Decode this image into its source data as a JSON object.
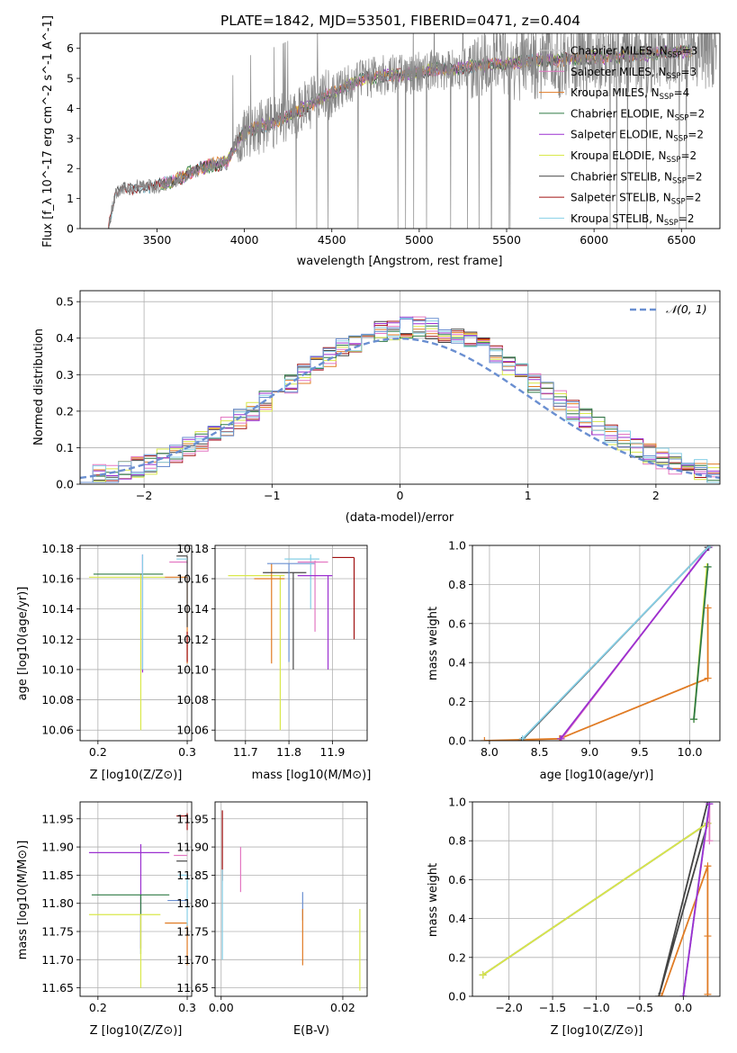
{
  "title": "PLATE=1842, MJD=53501, FIBERID=0471, z=0.404",
  "colors": {
    "Chabrier MILES": "#ffffff",
    "Salpeter MILES": "#e377c2",
    "Kroupa MILES": "#e07b24",
    "Chabrier ELODIE": "#2f7a44",
    "Salpeter ELODIE": "#9b30d0",
    "Kroupa ELODIE": "#d9e84a",
    "Chabrier STELIB": "#444444",
    "Salpeter STELIB": "#a01010",
    "Kroupa STELIB": "#86cfe6",
    "blue": "#6a8fd1",
    "data": "#888888"
  },
  "chart_data": [
    {
      "id": "spectrum",
      "type": "line",
      "xlabel": "wavelength [Angstrom, rest frame]",
      "ylabel": "Flux [f_λ 10^-17 erg cm^-2 s^-1 A^-1]",
      "xlim": [
        3060,
        6720
      ],
      "ylim": [
        0,
        6.5
      ],
      "xticks": [
        3500,
        4000,
        4500,
        5000,
        5500,
        6000,
        6500
      ],
      "yticks": [
        0,
        1,
        2,
        3,
        4,
        5,
        6
      ],
      "continuum": {
        "x": [
          3220,
          3260,
          3300,
          3400,
          3500,
          3600,
          3700,
          3800,
          3900,
          3950,
          4000,
          4100,
          4200,
          4300,
          4400,
          4500,
          4600,
          4700,
          4800,
          4900,
          5000,
          5100,
          5200,
          5300,
          5400,
          5500,
          5600,
          5700,
          5800,
          5900,
          6000,
          6100,
          6200,
          6300,
          6400,
          6550
        ],
        "y": [
          0,
          1.1,
          1.3,
          1.4,
          1.4,
          1.6,
          1.9,
          2.1,
          2.2,
          2.8,
          3.2,
          3.4,
          3.6,
          3.9,
          4.2,
          4.5,
          4.8,
          5.0,
          5.1,
          5.1,
          5.2,
          5.3,
          5.3,
          5.4,
          5.45,
          5.5,
          5.55,
          5.6,
          5.6,
          5.65,
          5.7,
          5.7,
          5.75,
          5.8,
          5.85,
          5.9
        ]
      },
      "legend": [
        {
          "label": "Chabrier MILES, N",
          "sub": "SSP",
          "tail": "=3"
        },
        {
          "label": "Salpeter MILES, N",
          "sub": "SSP",
          "tail": "=3"
        },
        {
          "label": "Kroupa MILES, N",
          "sub": "SSP",
          "tail": "=4"
        },
        {
          "label": "Chabrier ELODIE, N",
          "sub": "SSP",
          "tail": "=2"
        },
        {
          "label": "Salpeter ELODIE, N",
          "sub": "SSP",
          "tail": "=2"
        },
        {
          "label": "Kroupa ELODIE, N",
          "sub": "SSP",
          "tail": "=2"
        },
        {
          "label": "Chabrier STELIB, N",
          "sub": "SSP",
          "tail": "=2"
        },
        {
          "label": "Salpeter STELIB, N",
          "sub": "SSP",
          "tail": "=2"
        },
        {
          "label": "Kroupa STELIB, N",
          "sub": "SSP",
          "tail": "=2"
        }
      ]
    },
    {
      "id": "residuals",
      "type": "line",
      "xlabel": "(data-model)/error",
      "ylabel": "Normed distribution",
      "xlim": [
        -2.5,
        2.5
      ],
      "ylim": [
        0,
        0.53
      ],
      "xticks": [
        -2,
        -1,
        0,
        1,
        2
      ],
      "yticks": [
        0.0,
        0.1,
        0.2,
        0.3,
        0.4,
        0.5
      ],
      "legend": "𝒩(0, 1)",
      "legend_position": "top-right",
      "grid": true
    },
    {
      "id": "age_vs_Z",
      "type": "scatter",
      "xlabel": "Z [log10(Z/Z⊙)]",
      "ylabel": "age [log10(age/yr)]",
      "xlim": [
        0.18,
        0.305
      ],
      "ylim": [
        10.053,
        10.182
      ],
      "xticks": [
        0.2,
        0.3
      ],
      "yticks": [
        10.06,
        10.08,
        10.1,
        10.12,
        10.14,
        10.16,
        10.18
      ],
      "grid": true,
      "points": [
        {
          "model": "Kroupa ELODIE",
          "x": 0.248,
          "y": 10.161,
          "xl": 0.19,
          "xh": 0.275,
          "yl": 10.06,
          "yh": 10.163
        },
        {
          "model": "Chabrier ELODIE",
          "x": 0.248,
          "y": 10.163,
          "xl": 0.195,
          "xh": 0.273,
          "yl": 10.163,
          "yh": 10.163
        },
        {
          "model": "Salpeter ELODIE",
          "x": 0.25,
          "y": 10.165,
          "xl": 0.25,
          "xh": 0.25,
          "yl": 10.098,
          "yh": 10.176
        },
        {
          "model": "Kroupa STELIB",
          "x": 0.25,
          "y": 10.16,
          "xl": 0.25,
          "xh": 0.25,
          "yl": 10.1,
          "yh": 10.176
        },
        {
          "model": "Kroupa MILES",
          "x": 0.3,
          "y": 10.161,
          "xl": 0.275,
          "xh": 0.3,
          "yl": 10.104,
          "yh": 10.161
        },
        {
          "model": "Salpeter MILES",
          "x": 0.3,
          "y": 10.171,
          "xl": 0.28,
          "xh": 0.3,
          "yl": 10.17,
          "yh": 10.171
        },
        {
          "model": "Chabrier STELIB",
          "x": 0.3,
          "y": 10.175,
          "xl": 0.288,
          "xh": 0.3,
          "yl": 10.128,
          "yh": 10.175
        },
        {
          "model": "Salpeter STELIB",
          "x": 0.3,
          "y": 10.115,
          "xl": 0.3,
          "xh": 0.3,
          "yl": 10.105,
          "yh": 10.125
        },
        {
          "model": "Kroupa STELIB",
          "x": 0.3,
          "y": 10.173,
          "xl": 0.288,
          "xh": 0.3,
          "yl": 10.173,
          "yh": 10.173
        }
      ]
    },
    {
      "id": "age_vs_mass",
      "type": "scatter",
      "xlabel": "mass [log10(M/M⊙)]",
      "ylabel": "",
      "xlim": [
        11.63,
        11.98
      ],
      "ylim": [
        10.053,
        10.182
      ],
      "xticks": [
        11.7,
        11.8,
        11.9
      ],
      "yticks": [
        10.06,
        10.08,
        10.1,
        10.12,
        10.14,
        10.16,
        10.18
      ],
      "grid": true,
      "points": [
        {
          "model": "Kroupa ELODIE",
          "x": 11.78,
          "y": 10.162,
          "xl": 11.66,
          "xh": 11.79,
          "yl": 10.06,
          "yh": 10.162
        },
        {
          "model": "Kroupa MILES",
          "x": 11.76,
          "y": 10.16,
          "xl": 11.72,
          "xh": 11.79,
          "yl": 10.104,
          "yh": 10.17
        },
        {
          "model": "Chabrier STELIB",
          "x": 11.81,
          "y": 10.164,
          "xl": 11.74,
          "xh": 11.84,
          "yl": 10.1,
          "yh": 10.164
        },
        {
          "model": "Blue",
          "x": 11.8,
          "y": 10.17,
          "xl": 11.75,
          "xh": 11.86,
          "yl": 10.105,
          "yh": 10.17
        },
        {
          "model": "Kroupa STELIB",
          "x": 11.85,
          "y": 10.173,
          "xl": 11.79,
          "xh": 11.87,
          "yl": 10.14,
          "yh": 10.176
        },
        {
          "model": "Salpeter MILES",
          "x": 11.86,
          "y": 10.171,
          "xl": 11.82,
          "xh": 11.89,
          "yl": 10.125,
          "yh": 10.172
        },
        {
          "model": "Salpeter ELODIE",
          "x": 11.89,
          "y": 10.162,
          "xl": 11.82,
          "xh": 11.9,
          "yl": 10.1,
          "yh": 10.162
        },
        {
          "model": "Salpeter STELIB",
          "x": 11.95,
          "y": 10.174,
          "xl": 11.9,
          "xh": 11.95,
          "yl": 10.12,
          "yh": 10.174
        }
      ]
    },
    {
      "id": "massweight_vs_age",
      "type": "line",
      "xlabel": "age [log10(age/yr)]",
      "ylabel": "mass weight",
      "xlim": [
        7.83,
        10.3
      ],
      "ylim": [
        0,
        1
      ],
      "xticks": [
        8.0,
        8.5,
        9.0,
        9.5,
        10.0
      ],
      "yticks": [
        0.0,
        0.2,
        0.4,
        0.6,
        0.8,
        1.0
      ],
      "grid": true,
      "series": [
        {
          "model": "Kroupa MILES",
          "x": [
            7.95,
            8.7,
            10.18,
            10.18
          ],
          "y": [
            0.0,
            0.01,
            0.32,
            0.68
          ]
        },
        {
          "model": "Salpeter MILES",
          "x": [
            8.72,
            10.2
          ],
          "y": [
            0.01,
            1.0
          ]
        },
        {
          "model": "Salpeter ELODIE",
          "x": [
            8.71,
            10.19
          ],
          "y": [
            0.01,
            0.99
          ]
        },
        {
          "model": "Chabrier STELIB",
          "x": [
            8.32,
            10.18
          ],
          "y": [
            0.0,
            0.99
          ]
        },
        {
          "model": "Kroupa STELIB",
          "x": [
            8.33,
            10.2
          ],
          "y": [
            0.01,
            1.0
          ]
        },
        {
          "model": "Kroupa ELODIE",
          "x": [
            10.04,
            10.17
          ],
          "y": [
            0.11,
            0.89
          ]
        },
        {
          "model": "Chabrier ELODIE",
          "x": [
            10.04,
            10.18
          ],
          "y": [
            0.11,
            0.89
          ]
        }
      ]
    },
    {
      "id": "mass_vs_Z",
      "type": "scatter",
      "xlabel": "Z [log10(Z/Z⊙)]",
      "ylabel": "mass [log10(M/M⊙)]",
      "xlim": [
        0.18,
        0.305
      ],
      "ylim": [
        11.635,
        11.98
      ],
      "xticks": [
        0.2,
        0.3
      ],
      "yticks": [
        11.65,
        11.7,
        11.75,
        11.8,
        11.85,
        11.9,
        11.95
      ],
      "grid": true,
      "points": [
        {
          "model": "Salpeter ELODIE",
          "x": 0.248,
          "y": 11.89,
          "xl": 0.19,
          "xh": 0.28,
          "yl": 11.72,
          "yh": 11.905
        },
        {
          "model": "Chabrier ELODIE",
          "x": 0.248,
          "y": 11.815,
          "xl": 0.193,
          "xh": 0.28,
          "yl": 11.71,
          "yh": 11.815
        },
        {
          "model": "Kroupa ELODIE",
          "x": 0.248,
          "y": 11.78,
          "xl": 0.19,
          "xh": 0.27,
          "yl": 11.65,
          "yh": 11.78
        },
        {
          "model": "Blue",
          "x": 0.3,
          "y": 11.805,
          "xl": 0.278,
          "xh": 0.3,
          "yl": 11.805,
          "yh": 11.805
        },
        {
          "model": "Kroupa MILES",
          "x": 0.3,
          "y": 11.765,
          "xl": 0.275,
          "xh": 0.3,
          "yl": 11.69,
          "yh": 11.765
        },
        {
          "model": "Kroupa STELIB",
          "x": 0.3,
          "y": 11.85,
          "xl": 0.29,
          "xh": 0.3,
          "yl": 11.76,
          "yh": 11.85
        },
        {
          "model": "Chabrier STELIB",
          "x": 0.3,
          "y": 11.875,
          "xl": 0.288,
          "xh": 0.3,
          "yl": 11.875,
          "yh": 11.875
        },
        {
          "model": "Salpeter MILES",
          "x": 0.3,
          "y": 11.885,
          "xl": 0.285,
          "xh": 0.3,
          "yl": 11.885,
          "yh": 11.885
        },
        {
          "model": "Salpeter STELIB",
          "x": 0.3,
          "y": 11.955,
          "xl": 0.288,
          "xh": 0.3,
          "yl": 11.93,
          "yh": 11.96
        }
      ]
    },
    {
      "id": "mass_vs_ebv",
      "type": "scatter",
      "xlabel": "E(B-V)",
      "ylabel": "",
      "xlim": [
        -0.001,
        0.024
      ],
      "ylim": [
        11.635,
        11.98
      ],
      "xticks": [
        0.0,
        0.02
      ],
      "yticks": [
        11.65,
        11.7,
        11.75,
        11.8,
        11.85,
        11.9,
        11.95
      ],
      "grid": true,
      "points": [
        {
          "model": "Salpeter STELIB",
          "x": 0.0002,
          "y": 11.9,
          "xl": 0.0002,
          "xh": 0.0002,
          "yl": 11.84,
          "yh": 11.965
        },
        {
          "model": "Kroupa STELIB",
          "x": 0.0002,
          "y": 11.78,
          "xl": 0.0002,
          "xh": 0.0002,
          "yl": 11.7,
          "yh": 11.86
        },
        {
          "model": "Salpeter MILES",
          "x": 0.0032,
          "y": 11.86,
          "xl": 0.0032,
          "xh": 0.0032,
          "yl": 11.82,
          "yh": 11.9
        },
        {
          "model": "Blue",
          "x": 0.0134,
          "y": 11.8,
          "xl": 0.0134,
          "xh": 0.0134,
          "yl": 11.77,
          "yh": 11.82
        },
        {
          "model": "Kroupa MILES",
          "x": 0.0134,
          "y": 11.74,
          "xl": 0.0134,
          "xh": 0.0134,
          "yl": 11.69,
          "yh": 11.79
        },
        {
          "model": "Kroupa ELODIE",
          "x": 0.0228,
          "y": 11.72,
          "xl": 0.0228,
          "xh": 0.0228,
          "yl": 11.645,
          "yh": 11.79
        }
      ]
    },
    {
      "id": "massweight_vs_Z",
      "type": "line",
      "xlabel": "Z [log10(Z/Z⊙)]",
      "ylabel": "mass weight",
      "xlim": [
        -2.42,
        0.42
      ],
      "ylim": [
        0,
        1
      ],
      "xticks": [
        -2.0,
        -1.5,
        -1.0,
        -0.5,
        0.0
      ],
      "yticks": [
        0.0,
        0.2,
        0.4,
        0.6,
        0.8,
        1.0
      ],
      "grid": true,
      "series": [
        {
          "model": "Chabrier STELIB",
          "x": [
            -2.3,
            0.28,
            -0.28,
            0.28
          ],
          "y": [
            0.11,
            0.89,
            0.0,
            1.0
          ]
        },
        {
          "model": "Kroupa ELODIE",
          "x": [
            -2.3,
            0.28
          ],
          "y": [
            0.11,
            0.89
          ]
        },
        {
          "model": "Kroupa MILES",
          "x": [
            -0.25,
            0.28,
            0.28,
            0.28
          ],
          "y": [
            0.0,
            0.67,
            0.31,
            0.01
          ]
        },
        {
          "model": "Salpeter MILES",
          "x": [
            0.0,
            0.3,
            0.3
          ],
          "y": [
            0.0,
            0.99,
            0.8
          ]
        },
        {
          "model": "Kroupa STELIB",
          "x": [
            0.0,
            0.3
          ],
          "y": [
            0.0,
            1.0
          ]
        },
        {
          "model": "Salpeter ELODIE",
          "x": [
            0.0,
            0.3
          ],
          "y": [
            0.0,
            0.99
          ]
        }
      ]
    }
  ]
}
